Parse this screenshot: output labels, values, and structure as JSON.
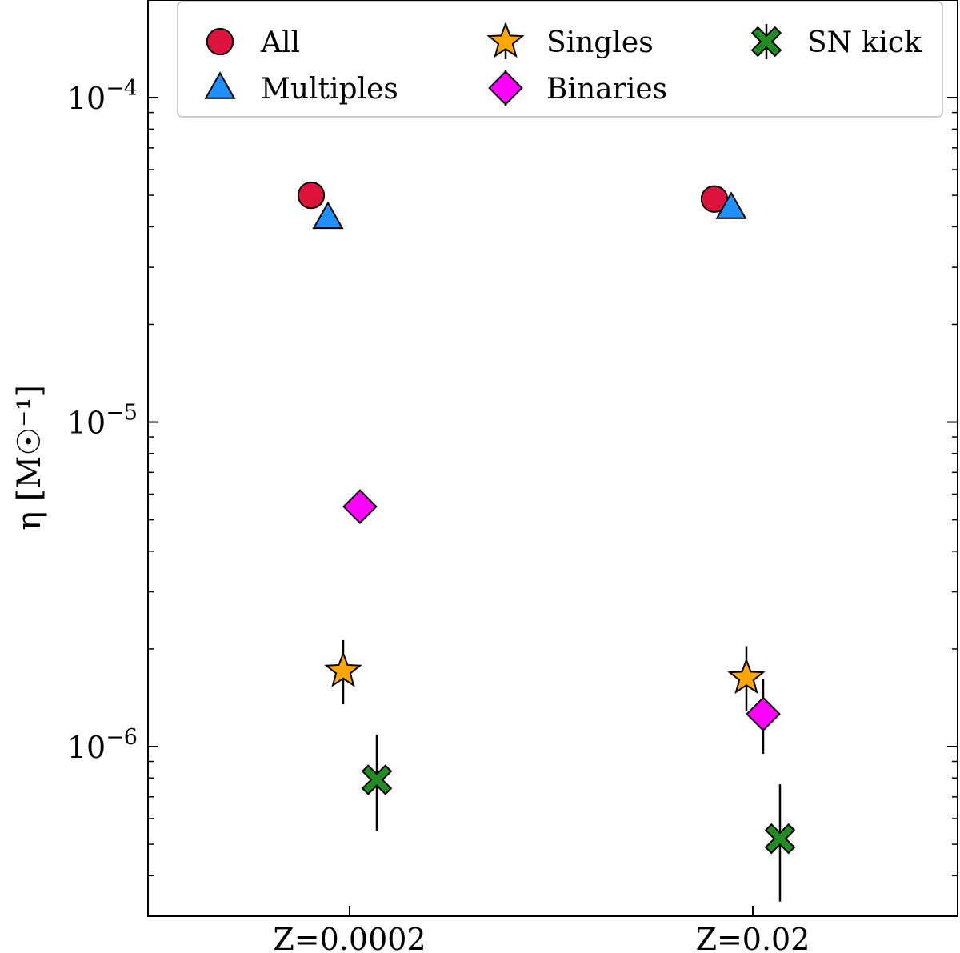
{
  "chart_data": {
    "type": "scatter",
    "title": "",
    "xlabel": "",
    "ylabel": "η [M☉⁻¹]",
    "ylabel_parts": {
      "symbol": "η",
      "unit": "M",
      "sub": "⊙",
      "sup": "−1"
    },
    "yscale": "log",
    "ylim": [
      3e-07,
      0.0002
    ],
    "yticks": [
      {
        "value": 0.0001,
        "base": "10",
        "exp": "−4"
      },
      {
        "value": 1e-05,
        "base": "10",
        "exp": "−5"
      },
      {
        "value": 1e-06,
        "base": "10",
        "exp": "−6"
      }
    ],
    "categories": [
      "Z=0.0002",
      "Z=0.02"
    ],
    "grid": false,
    "legend_placement": "top",
    "series": [
      {
        "name": "All",
        "marker": "circle",
        "color": "#dc143c",
        "values": [
          5e-05,
          4.87e-05
        ],
        "err_low": [
          null,
          null
        ],
        "err_high": [
          null,
          null
        ]
      },
      {
        "name": "Multiples",
        "marker": "triangle",
        "color": "#1e90ff",
        "values": [
          4.26e-05,
          4.57e-05
        ],
        "err_low": [
          null,
          null
        ],
        "err_high": [
          null,
          null
        ]
      },
      {
        "name": "Singles",
        "marker": "star",
        "color": "#ffa500",
        "values": [
          1.71e-06,
          1.63e-06
        ],
        "err_low": [
          1.35e-06,
          1.29e-06
        ],
        "err_high": [
          2.13e-06,
          2.04e-06
        ]
      },
      {
        "name": "Binaries",
        "marker": "diamond",
        "color": "#ff00ff",
        "values": [
          5.49e-06,
          1.26e-06
        ],
        "err_low": [
          null,
          9.5e-07
        ],
        "err_high": [
          null,
          1.62e-06
        ]
      },
      {
        "name": "SN kick",
        "marker": "x",
        "color": "#228b22",
        "values": [
          7.9e-07,
          5.2e-07
        ],
        "err_low": [
          5.5e-07,
          3.33e-07
        ],
        "err_high": [
          1.09e-06,
          7.65e-07
        ]
      }
    ]
  }
}
